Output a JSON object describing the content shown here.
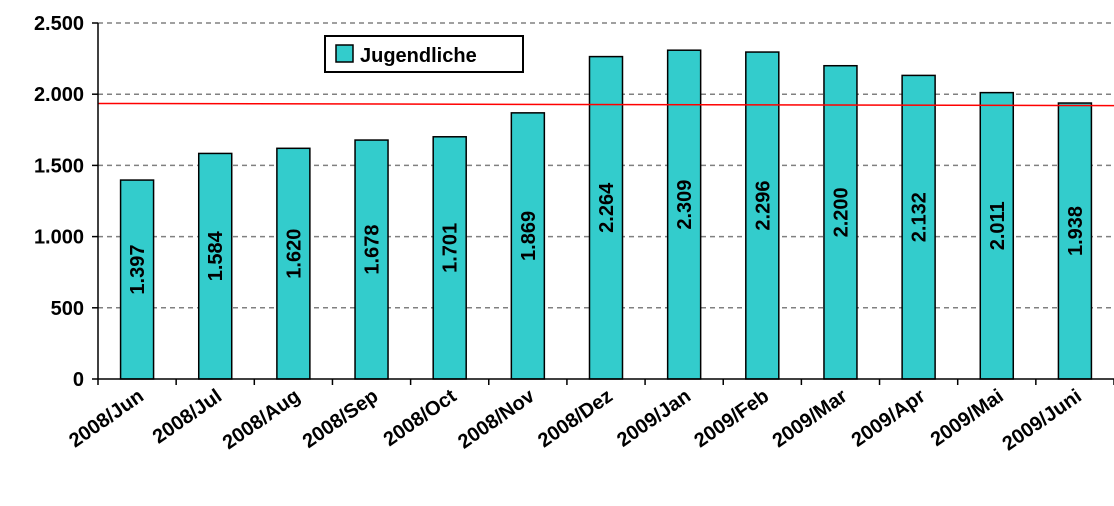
{
  "chart_data": {
    "type": "bar",
    "categories": [
      "2008/Jun",
      "2008/Jul",
      "2008/Aug",
      "2008/Sep",
      "2008/Oct",
      "2008/Nov",
      "2008/Dez",
      "2009/Jan",
      "2009/Feb",
      "2009/Mar",
      "2009/Apr",
      "2009/Mai",
      "2009/Juni"
    ],
    "series": [
      {
        "name": "Jugendliche",
        "values": [
          1397,
          1584,
          1620,
          1678,
          1701,
          1869,
          2264,
          2309,
          2296,
          2200,
          2132,
          2011,
          1938
        ],
        "value_labels": [
          "1.397",
          "1.584",
          "1.620",
          "1.678",
          "1.701",
          "1.869",
          "2.264",
          "2.309",
          "2.296",
          "2.200",
          "2.132",
          "2.011",
          "1.938"
        ]
      }
    ],
    "y_ticks": [
      0,
      500,
      1000,
      1500,
      2000,
      2500
    ],
    "y_tick_labels": [
      "0",
      "500",
      "1.000",
      "1.500",
      "2.000",
      "2.500"
    ],
    "ylim": [
      0,
      2500
    ],
    "trend_line": {
      "start": 1935,
      "end": 1920
    },
    "grid": "horizontal-dashed",
    "legend_position": "top-left",
    "colors": {
      "bar": "#33CCCC",
      "trend": "#FF0000",
      "grid": "#808080",
      "axis": "#000000"
    }
  }
}
